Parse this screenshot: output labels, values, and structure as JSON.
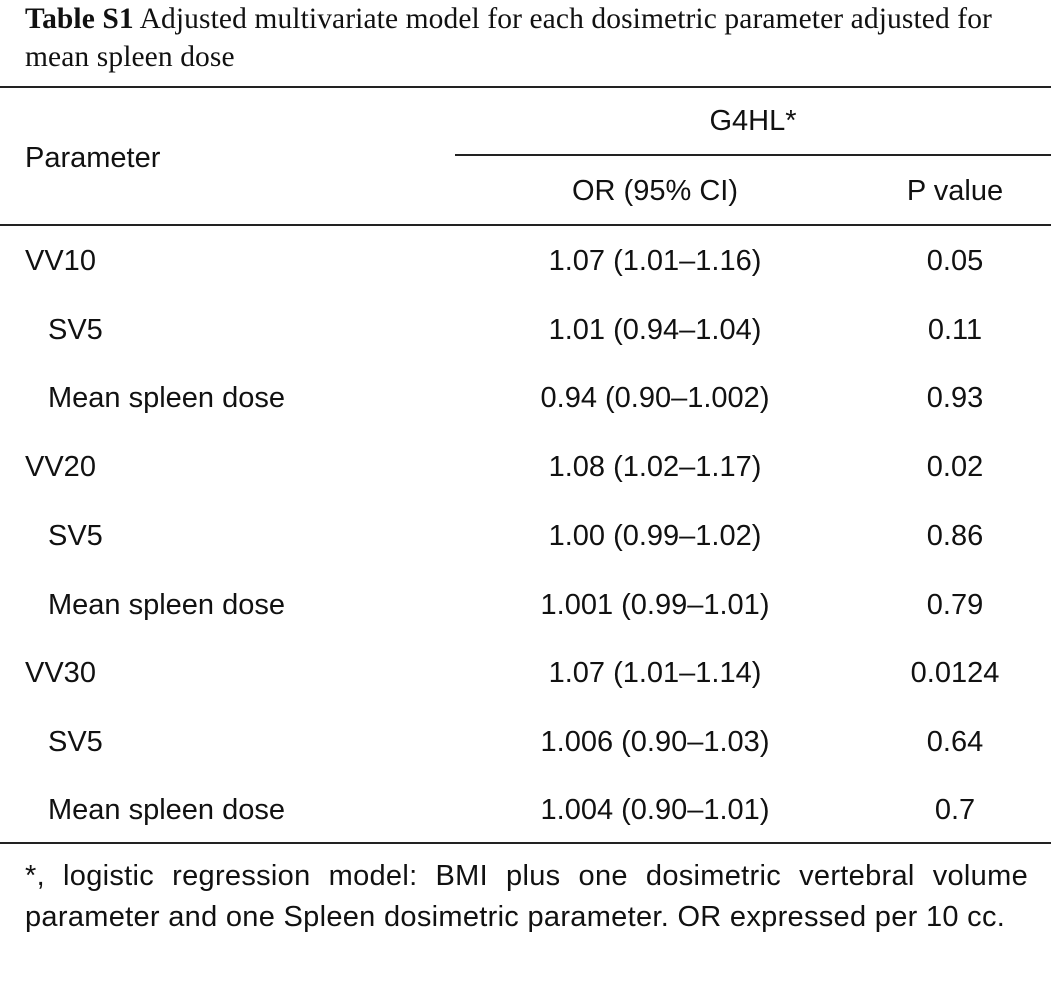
{
  "caption": {
    "label": "Table S1",
    "text": "Adjusted multivariate model for each dosimetric parameter adjusted for mean spleen dose"
  },
  "header": {
    "parameter": "Parameter",
    "group": "G4HL*",
    "or": "OR (95% CI)",
    "p": "P value"
  },
  "rows": [
    {
      "parameter": "VV10",
      "or": "1.07 (1.01–1.16)",
      "p": "0.05"
    },
    {
      "parameter": "SV5",
      "or": "1.01 (0.94–1.04)",
      "p": "0.11"
    },
    {
      "parameter": "Mean spleen dose",
      "or": "0.94 (0.90–1.002)",
      "p": "0.93"
    },
    {
      "parameter": "VV20",
      "or": "1.08 (1.02–1.17)",
      "p": "0.02"
    },
    {
      "parameter": "SV5",
      "or": "1.00 (0.99–1.02)",
      "p": "0.86"
    },
    {
      "parameter": "Mean spleen dose",
      "or": "1.001 (0.99–1.01)",
      "p": "0.79"
    },
    {
      "parameter": "VV30",
      "or": "1.07 (1.01–1.14)",
      "p": "0.0124"
    },
    {
      "parameter": "SV5",
      "or": "1.006 (0.90–1.03)",
      "p": "0.64"
    },
    {
      "parameter": "Mean spleen dose",
      "or": "1.004 (0.90–1.01)",
      "p": "0.7"
    }
  ],
  "footnote": "*, logistic regression model: BMI plus one dosimetric vertebral volume parameter and one Spleen dosimetric parameter. OR expressed per 10 cc."
}
